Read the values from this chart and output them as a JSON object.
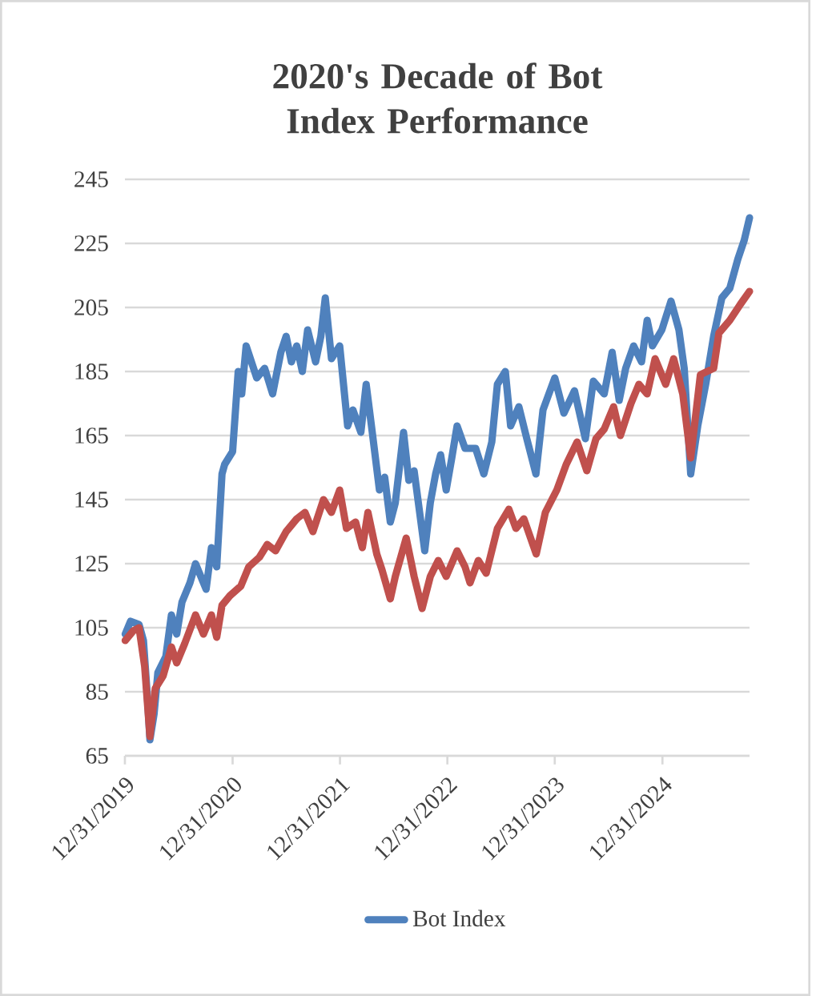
{
  "chart_data": {
    "type": "line",
    "title": "2020's Decade of Bot Index Performance",
    "xlim": [
      "2019-12-31",
      "2025-10-23"
    ],
    "ylim": [
      65,
      245
    ],
    "xticks": [
      {
        "value": "2019-12-31",
        "label": "12/31/2019"
      },
      {
        "value": "2020-12-31",
        "label": "12/31/2020"
      },
      {
        "value": "2021-12-31",
        "label": "12/31/2021"
      },
      {
        "value": "2022-12-31",
        "label": "12/31/2022"
      },
      {
        "value": "2023-12-31",
        "label": "12/31/2023"
      },
      {
        "value": "2024-12-31",
        "label": "12/31/2024"
      }
    ],
    "yticks": [
      65,
      85,
      105,
      125,
      145,
      165,
      185,
      205,
      225,
      245
    ],
    "grid": "y",
    "legend": "bottom",
    "series": [
      {
        "name": "Bot Index",
        "color": "#4f81bd",
        "x": [
          "2020-01-01",
          "2020-01-19",
          "2020-02-17",
          "2020-03-03",
          "2020-03-16",
          "2020-03-25",
          "2020-04-08",
          "2020-04-21",
          "2020-05-18",
          "2020-06-06",
          "2020-06-24",
          "2020-07-12",
          "2020-08-08",
          "2020-08-27",
          "2020-10-02",
          "2020-10-20",
          "2020-11-07",
          "2020-11-25",
          "2020-12-04",
          "2020-12-31",
          "2021-01-19",
          "2021-01-31",
          "2021-02-15",
          "2021-03-23",
          "2021-04-19",
          "2021-05-16",
          "2021-06-13",
          "2021-07-01",
          "2021-07-19",
          "2021-08-06",
          "2021-08-25",
          "2021-09-12",
          "2021-10-09",
          "2021-10-27",
          "2021-11-11",
          "2021-12-02",
          "2021-12-30",
          "2022-01-26",
          "2022-02-13",
          "2022-03-12",
          "2022-03-30",
          "2022-04-17",
          "2022-05-14",
          "2022-06-01",
          "2022-06-20",
          "2022-07-07",
          "2022-08-04",
          "2022-08-22",
          "2022-09-09",
          "2022-10-15",
          "2022-11-03",
          "2022-11-21",
          "2022-12-08",
          "2022-12-27",
          "2023-01-15",
          "2023-02-02",
          "2023-03-01",
          "2023-04-06",
          "2023-05-04",
          "2023-05-31",
          "2023-06-19",
          "2023-07-16",
          "2023-08-03",
          "2023-08-31",
          "2023-09-27",
          "2023-10-28",
          "2023-11-21",
          "2023-12-31",
          "2024-01-31",
          "2024-03-07",
          "2024-04-13",
          "2024-05-10",
          "2024-06-16",
          "2024-07-13",
          "2024-08-06",
          "2024-08-28",
          "2024-09-24",
          "2024-10-21",
          "2024-11-09",
          "2024-11-27",
          "2024-12-29",
          "2025-01-29",
          "2025-02-25",
          "2025-03-15",
          "2025-04-06",
          "2025-04-30",
          "2025-05-27",
          "2025-06-23",
          "2025-07-21",
          "2025-08-17",
          "2025-09-13",
          "2025-10-05",
          "2025-10-23"
        ],
        "values": [
          103,
          107,
          106,
          101,
          84,
          70,
          78,
          91,
          96,
          109,
          103,
          113,
          119,
          125,
          117,
          130,
          124,
          153,
          156,
          160,
          185,
          178,
          193,
          183,
          186,
          178,
          191,
          196,
          188,
          193,
          185,
          198,
          188,
          196,
          208,
          189,
          193,
          168,
          173,
          166,
          181,
          168,
          148,
          152,
          138,
          144,
          166,
          151,
          154,
          129,
          144,
          153,
          159,
          148,
          158,
          168,
          161,
          161,
          153,
          163,
          181,
          185,
          168,
          174,
          164,
          153,
          173,
          183,
          172,
          179,
          164,
          182,
          178,
          191,
          176,
          186,
          193,
          188,
          201,
          193,
          198,
          207,
          198,
          186,
          153,
          168,
          181,
          196,
          208,
          211,
          220,
          226,
          233
        ]
      },
      {
        "color": "#c0504d",
        "x": [
          "2020-01-01",
          "2020-01-28",
          "2020-02-17",
          "2020-03-07",
          "2020-03-25",
          "2020-04-12",
          "2020-05-09",
          "2020-06-06",
          "2020-06-24",
          "2020-07-21",
          "2020-08-27",
          "2020-09-23",
          "2020-10-20",
          "2020-11-07",
          "2020-11-25",
          "2020-12-22",
          "2021-01-28",
          "2021-02-24",
          "2021-04-01",
          "2021-04-28",
          "2021-05-26",
          "2021-07-01",
          "2021-08-06",
          "2021-09-03",
          "2021-09-30",
          "2021-11-05",
          "2021-12-02",
          "2021-12-30",
          "2022-01-22",
          "2022-02-22",
          "2022-03-17",
          "2022-04-05",
          "2022-05-05",
          "2022-05-23",
          "2022-06-20",
          "2022-07-07",
          "2022-08-13",
          "2022-09-09",
          "2022-10-06",
          "2022-11-03",
          "2022-11-30",
          "2022-12-27",
          "2023-02-02",
          "2023-03-01",
          "2023-03-18",
          "2023-04-15",
          "2023-05-12",
          "2023-06-19",
          "2023-07-28",
          "2023-08-21",
          "2023-09-17",
          "2023-10-29",
          "2023-11-29",
          "2024-01-07",
          "2024-02-08",
          "2024-03-16",
          "2024-04-18",
          "2024-05-19",
          "2024-06-16",
          "2024-07-18",
          "2024-08-10",
          "2024-09-15",
          "2024-10-12",
          "2024-11-09",
          "2024-12-06",
          "2025-01-11",
          "2025-02-07",
          "2025-03-10",
          "2025-04-06",
          "2025-05-09",
          "2025-06-23",
          "2025-07-11",
          "2025-08-17",
          "2025-09-22",
          "2025-10-23"
        ],
        "values": [
          101,
          104,
          105,
          93,
          71,
          86,
          90,
          99,
          94,
          100,
          109,
          103,
          109,
          102,
          112,
          115,
          118,
          124,
          127,
          131,
          129,
          135,
          139,
          141,
          135,
          145,
          141,
          148,
          136,
          138,
          130,
          141,
          128,
          123,
          114,
          121,
          133,
          121,
          111,
          121,
          126,
          121,
          129,
          124,
          119,
          126,
          122,
          136,
          142,
          136,
          139,
          128,
          141,
          148,
          156,
          163,
          154,
          164,
          167,
          174,
          165,
          175,
          181,
          178,
          189,
          181,
          189,
          178,
          158,
          184,
          186,
          197,
          201,
          206,
          210
        ]
      }
    ]
  }
}
